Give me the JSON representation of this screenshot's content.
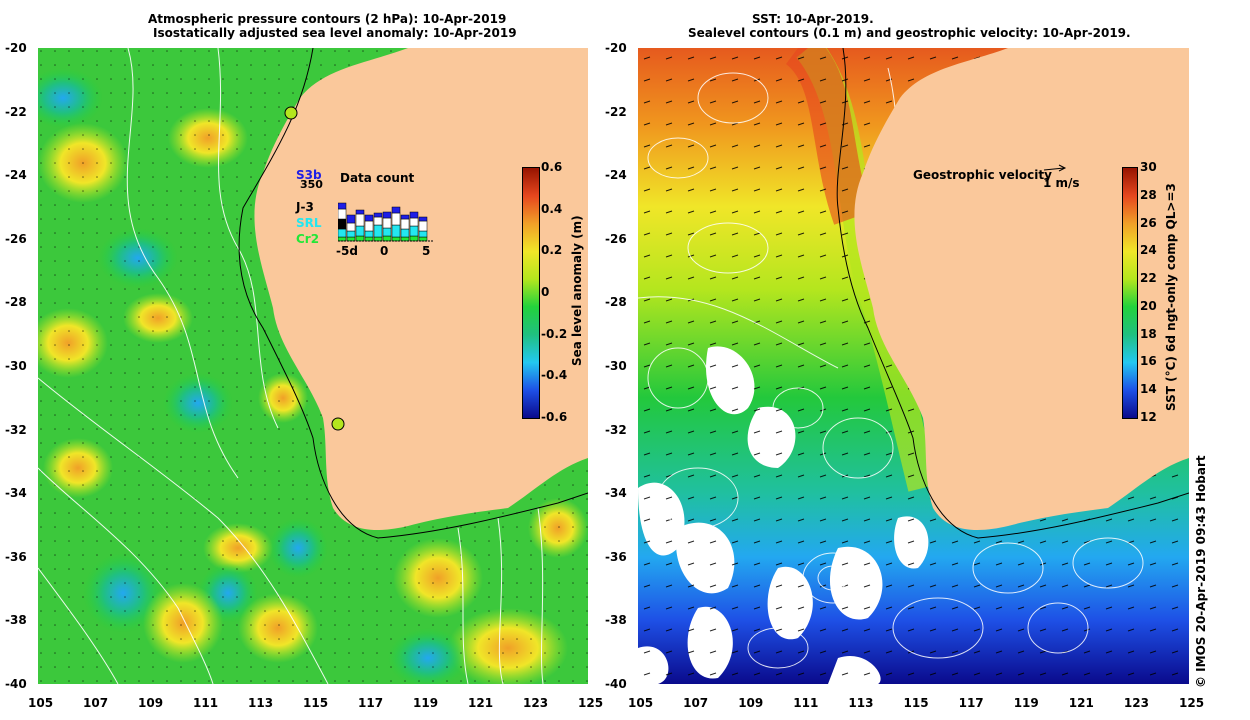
{
  "left_panel": {
    "title_line1": "Atmospheric pressure contours (2 hPa): 10-Apr-2019",
    "title_line2": "Isostatically adjusted sea level anomaly: 10-Apr-2019",
    "colorbar": {
      "label": "Sea level anomaly (m)",
      "ticks": [
        "0.6",
        "0.4",
        "0.2",
        "0",
        "-0.2",
        "-0.4",
        "-0.6"
      ],
      "colors": [
        "#0a0a8c",
        "#1e50e6",
        "#23c8f0",
        "#20c080",
        "#23d23c",
        "#b4e61e",
        "#f0e628",
        "#f0a028",
        "#e6461e",
        "#961400"
      ]
    },
    "data_count": {
      "title": "Data count",
      "legend": [
        {
          "label": "S3b",
          "color": "#1e1ee6"
        },
        {
          "label": "350",
          "color": "#000000"
        },
        {
          "label": "J-3",
          "color": "#000000"
        },
        {
          "label": "SRL",
          "color": "#23e6f0"
        },
        {
          "label": "Cr2",
          "color": "#23e637"
        }
      ],
      "x_ticks": [
        "-5d",
        "0",
        "5"
      ]
    },
    "markers": [
      {
        "lon": 114.1,
        "lat": -22.0
      },
      {
        "lon": 115.9,
        "lat": -31.8
      }
    ]
  },
  "right_panel": {
    "title_line1": "SST: 10-Apr-2019.",
    "title_line2": "Sealevel contours (0.1 m) and geostrophic velocity: 10-Apr-2019.",
    "velocity_label": "Geostrophic velocity",
    "velocity_scale": "1 m/s",
    "colorbar": {
      "label": "SST (°C) 6d ngt-only comp QL>=3",
      "ticks": [
        "30",
        "28",
        "26",
        "24",
        "22",
        "20",
        "18",
        "16",
        "14",
        "12"
      ],
      "colors": [
        "#0a0a8c",
        "#1e50e6",
        "#23c8f0",
        "#20c080",
        "#23d23c",
        "#b4e61e",
        "#f0e628",
        "#f0a028",
        "#e6461e",
        "#961400"
      ]
    }
  },
  "axes": {
    "lat_ticks": [
      "-20",
      "-22",
      "-24",
      "-26",
      "-28",
      "-30",
      "-32",
      "-34",
      "-36",
      "-38",
      "-40"
    ],
    "lon_ticks": [
      "105",
      "107",
      "109",
      "111",
      "113",
      "115",
      "117",
      "119",
      "121",
      "123",
      "125"
    ]
  },
  "credit": "© IMOS 20-Apr-2019 09:43 Hobart"
}
